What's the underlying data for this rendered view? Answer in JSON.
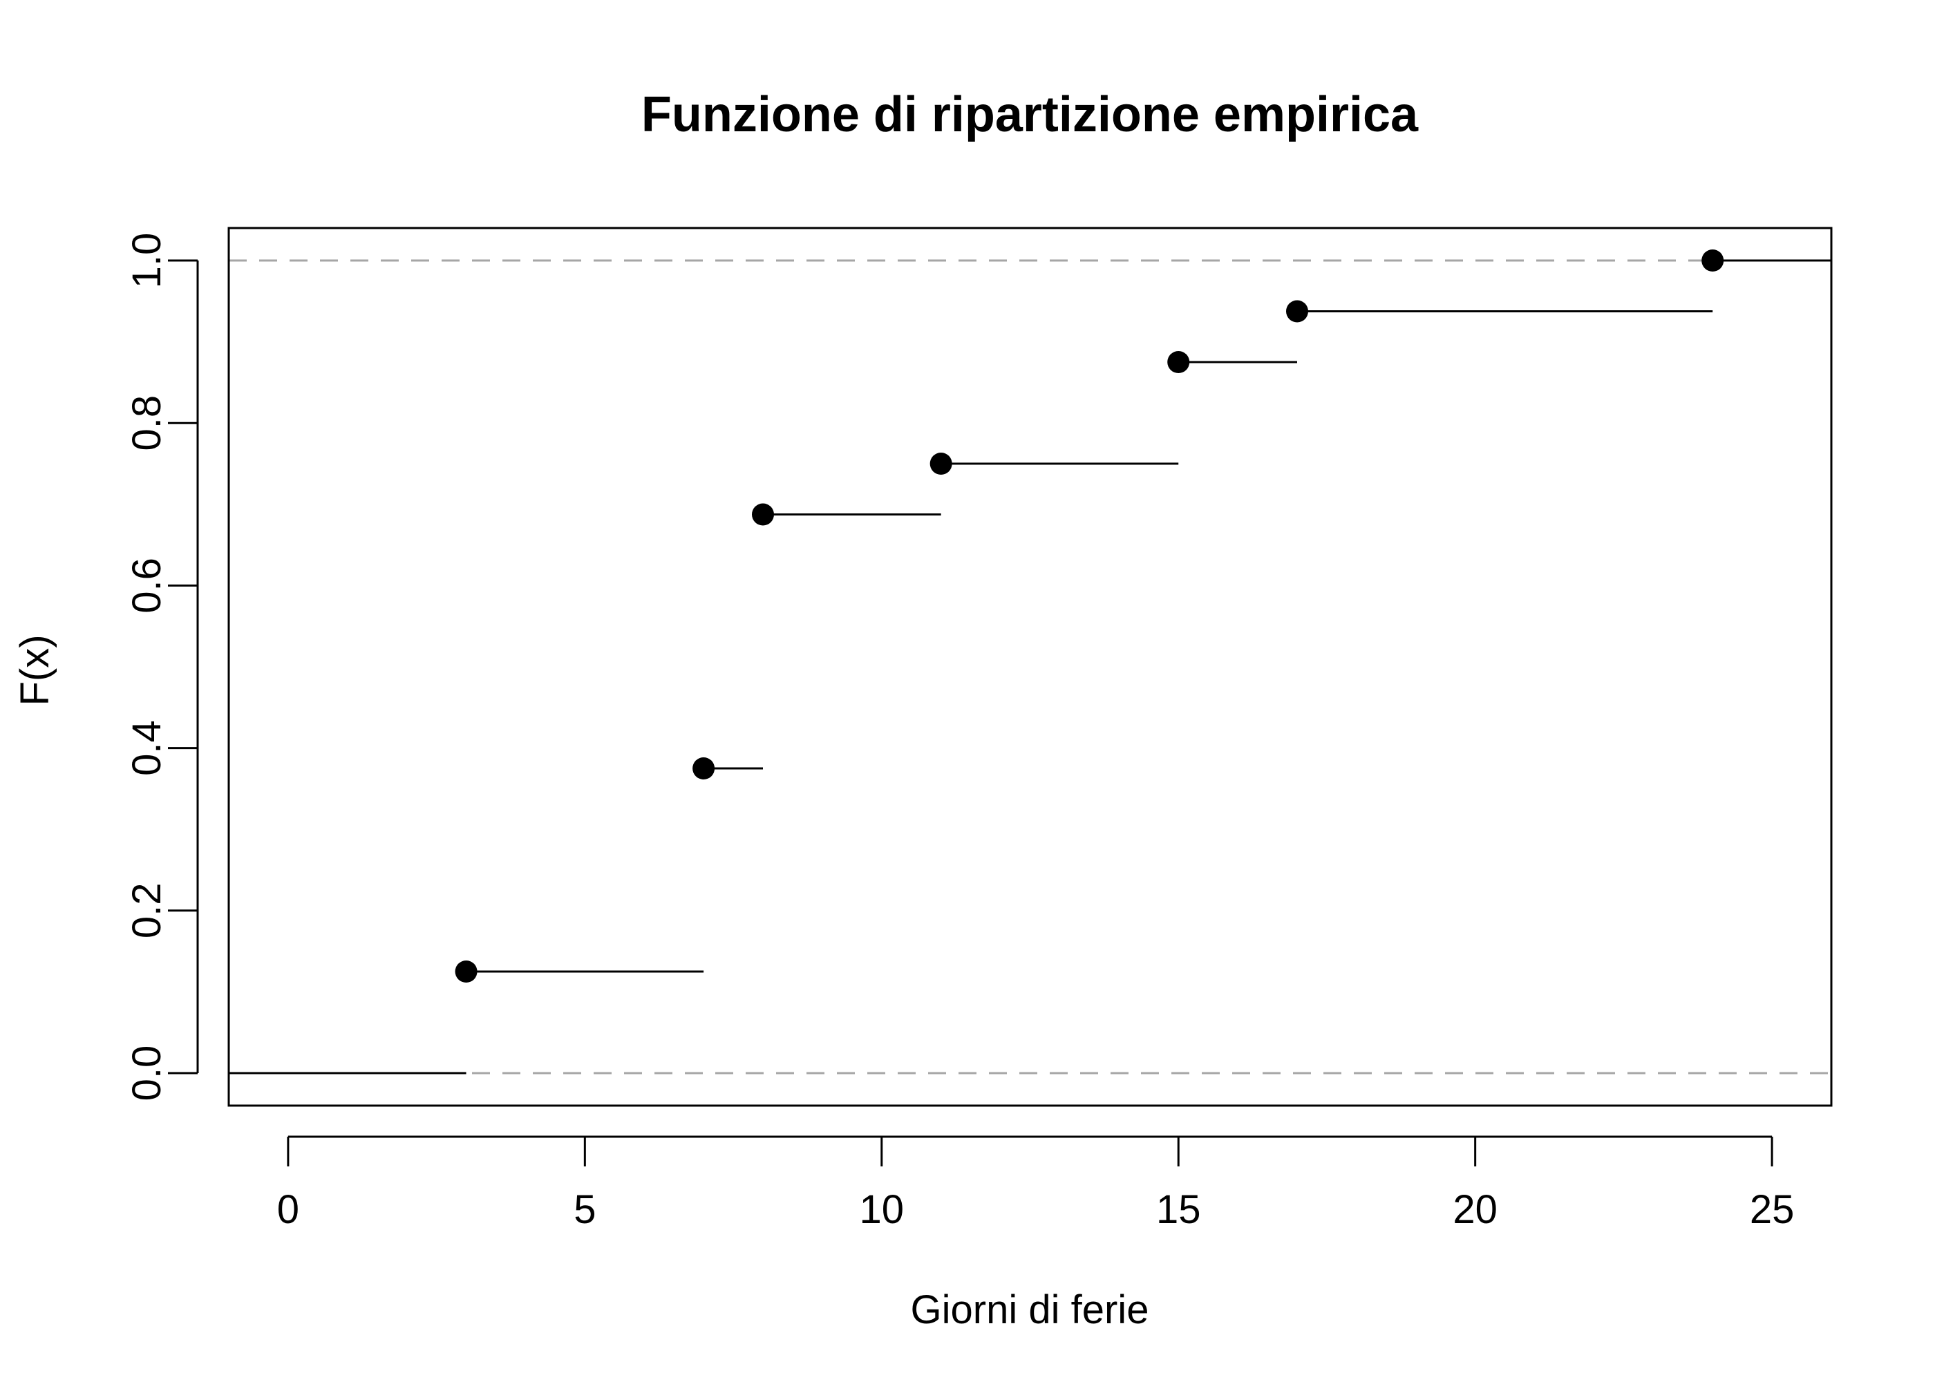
{
  "chart_data": {
    "type": "ecdf-step",
    "title": "Funzione di ripartizione empirica",
    "xlabel": "Giorni di ferie",
    "ylabel": "F(x)",
    "xlim": [
      -1,
      26
    ],
    "ylim": [
      0,
      1
    ],
    "x_ticks": [
      0,
      5,
      10,
      15,
      20,
      25
    ],
    "y_ticks": [
      0.0,
      0.2,
      0.4,
      0.6,
      0.8,
      1.0
    ],
    "y_tick_labels": [
      "0.0",
      "0.2",
      "0.4",
      "0.6",
      "0.8",
      "1.0"
    ],
    "reference_lines": [
      0,
      1
    ],
    "steps": [
      {
        "x": 3,
        "y": 0.125
      },
      {
        "x": 7,
        "y": 0.375
      },
      {
        "x": 8,
        "y": 0.6875
      },
      {
        "x": 11,
        "y": 0.75
      },
      {
        "x": 15,
        "y": 0.875
      },
      {
        "x": 17,
        "y": 0.9375
      },
      {
        "x": 24,
        "y": 1.0
      }
    ],
    "colors": {
      "line": "#000000",
      "reference": "#a6a6a6"
    }
  }
}
